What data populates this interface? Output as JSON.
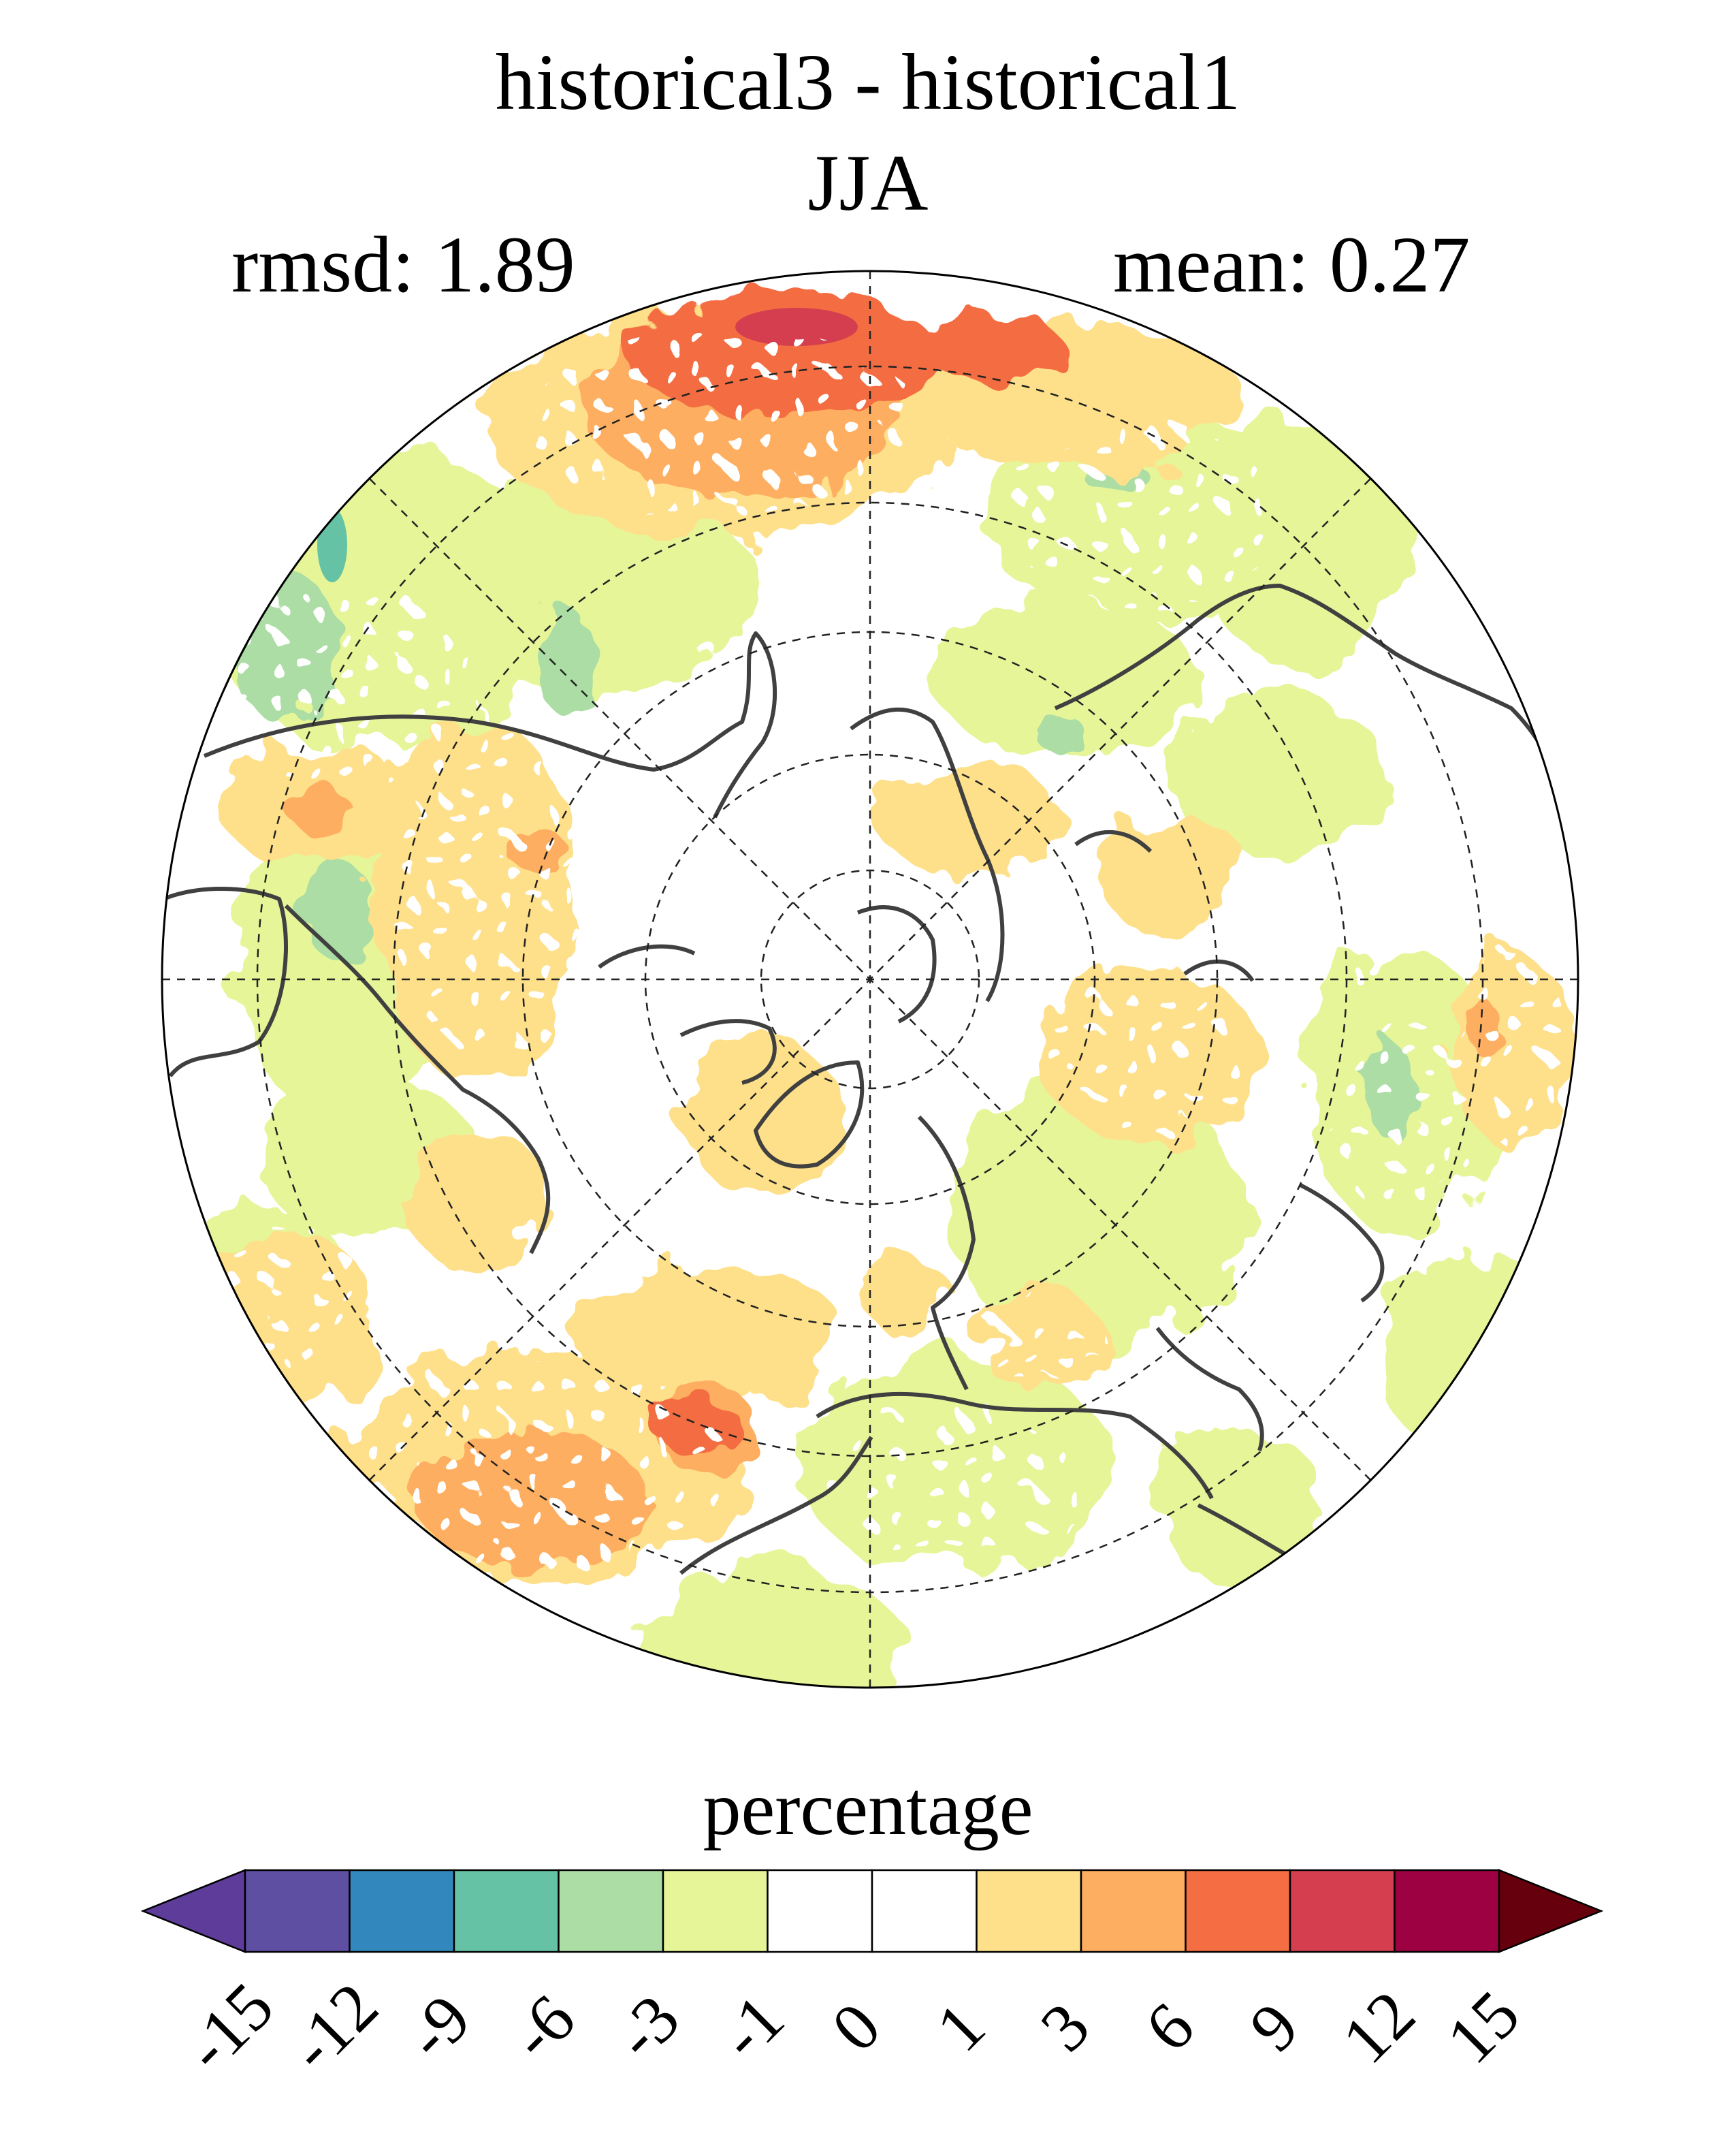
{
  "title": "historical3 - historical1",
  "subtitle": "JJA",
  "stats": {
    "rmsd": "rmsd: 1.89",
    "mean": "mean: 0.27"
  },
  "colorbar": {
    "title": "percentage",
    "ticks": [
      "-15",
      "-12",
      "-9",
      "-6",
      "-3",
      "-1",
      "0",
      "1",
      "3",
      "6",
      "9",
      "12",
      "15"
    ],
    "colors": [
      "#5e3c99",
      "#5e4fa2",
      "#3288bd",
      "#66c2a5",
      "#abdda4",
      "#e6f598",
      "#ffffff",
      "#ffffff",
      "#fee08b",
      "#fdae61",
      "#f46d43",
      "#d53e4f",
      "#9e0142",
      "#67000d"
    ],
    "extend": "both"
  },
  "map": {
    "projection": "north polar stereographic",
    "stippling": "white dots mark significant regions",
    "coastline_color": "#404040"
  }
}
